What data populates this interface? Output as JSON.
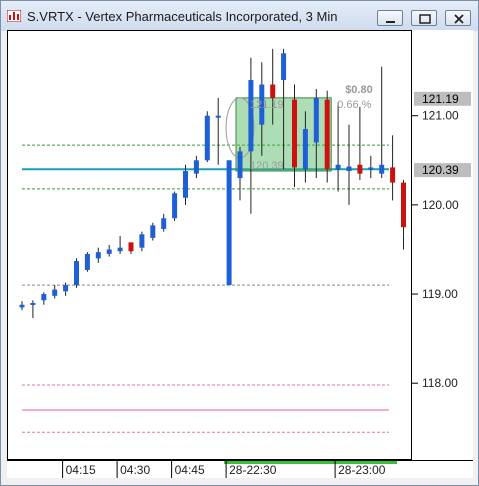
{
  "window": {
    "title": "S.VRTX - Vertex Pharmaceuticals Incorporated, 3 Min",
    "colors": {
      "titlebar": "#cfdcee",
      "up": "#1f5fd6",
      "down": "#cc1111"
    }
  },
  "chart_data": {
    "type": "candlestick",
    "symbol": "S.VRTX",
    "ylim": [
      117.15,
      121.95
    ],
    "y_ticks": [
      "121.00",
      "120.00",
      "119.00",
      "118.00"
    ],
    "y_tick_values": [
      121.0,
      120.0,
      119.0,
      118.0
    ],
    "x_ticks": [
      "04:15",
      "04:30",
      "04:45",
      "28-22:30",
      "28-23:00"
    ],
    "x_tick_index": [
      4,
      9,
      14,
      19,
      29
    ],
    "price_tags": [
      {
        "label": "121.19",
        "value": 121.19
      },
      {
        "label": "120.39",
        "value": 120.39
      }
    ],
    "candles": [
      {
        "o": 118.85,
        "h": 118.92,
        "l": 118.82,
        "c": 118.88
      },
      {
        "o": 118.9,
        "h": 118.93,
        "l": 118.73,
        "c": 118.9
      },
      {
        "o": 118.93,
        "h": 119.02,
        "l": 118.88,
        "c": 119.0
      },
      {
        "o": 118.98,
        "h": 119.1,
        "l": 118.95,
        "c": 119.05
      },
      {
        "o": 119.03,
        "h": 119.13,
        "l": 118.98,
        "c": 119.1
      },
      {
        "o": 119.1,
        "h": 119.4,
        "l": 119.07,
        "c": 119.37
      },
      {
        "o": 119.27,
        "h": 119.47,
        "l": 119.25,
        "c": 119.45
      },
      {
        "o": 119.4,
        "h": 119.52,
        "l": 119.35,
        "c": 119.47
      },
      {
        "o": 119.45,
        "h": 119.55,
        "l": 119.42,
        "c": 119.5
      },
      {
        "o": 119.48,
        "h": 119.65,
        "l": 119.45,
        "c": 119.52
      },
      {
        "o": 119.58,
        "h": 119.55,
        "l": 119.45,
        "c": 119.48
      },
      {
        "o": 119.52,
        "h": 119.7,
        "l": 119.48,
        "c": 119.67
      },
      {
        "o": 119.63,
        "h": 119.8,
        "l": 119.6,
        "c": 119.77
      },
      {
        "o": 119.73,
        "h": 119.9,
        "l": 119.7,
        "c": 119.85
      },
      {
        "o": 119.85,
        "h": 120.15,
        "l": 119.82,
        "c": 120.13
      },
      {
        "o": 120.08,
        "h": 120.45,
        "l": 120.0,
        "c": 120.38
      },
      {
        "o": 120.35,
        "h": 120.55,
        "l": 120.3,
        "c": 120.5
      },
      {
        "o": 120.5,
        "h": 121.05,
        "l": 120.48,
        "c": 121.0
      },
      {
        "o": 121.0,
        "h": 121.2,
        "l": 120.45,
        "c": 121.0
      },
      {
        "o": 119.1,
        "h": 120.5,
        "l": 119.1,
        "c": 120.5
      },
      {
        "o": 120.3,
        "h": 120.65,
        "l": 120.05,
        "c": 120.6
      },
      {
        "o": 120.6,
        "h": 121.65,
        "l": 119.9,
        "c": 121.4
      },
      {
        "o": 120.9,
        "h": 121.6,
        "l": 120.55,
        "c": 121.35
      },
      {
        "o": 121.35,
        "h": 121.75,
        "l": 120.9,
        "c": 121.2
      },
      {
        "o": 121.4,
        "h": 121.75,
        "l": 120.4,
        "c": 121.7
      },
      {
        "o": 121.18,
        "h": 121.35,
        "l": 120.2,
        "c": 120.42
      },
      {
        "o": 120.4,
        "h": 121.05,
        "l": 120.25,
        "c": 120.85
      },
      {
        "o": 120.7,
        "h": 121.3,
        "l": 120.3,
        "c": 121.2
      },
      {
        "o": 121.18,
        "h": 121.28,
        "l": 120.25,
        "c": 120.4
      },
      {
        "o": 120.4,
        "h": 121.15,
        "l": 120.15,
        "c": 120.45
      },
      {
        "o": 120.38,
        "h": 120.9,
        "l": 120.0,
        "c": 120.43
      },
      {
        "o": 120.45,
        "h": 121.1,
        "l": 120.28,
        "c": 120.35
      },
      {
        "o": 120.4,
        "h": 120.55,
        "l": 120.3,
        "c": 120.42
      },
      {
        "o": 120.35,
        "h": 121.55,
        "l": 120.3,
        "c": 120.45
      },
      {
        "o": 120.42,
        "h": 120.78,
        "l": 120.05,
        "c": 120.25
      },
      {
        "o": 120.25,
        "h": 120.28,
        "l": 119.5,
        "c": 119.75
      }
    ],
    "horizontal_lines": [
      {
        "value": 120.67,
        "color": "#2e9e2e",
        "style": "dash"
      },
      {
        "value": 120.4,
        "color": "#1aa0b8",
        "style": "solid"
      },
      {
        "value": 120.18,
        "color": "#2e9e2e",
        "style": "dash"
      },
      {
        "value": 119.1,
        "color": "#888888",
        "style": "dash"
      },
      {
        "value": 117.98,
        "color": "#e070b0",
        "style": "dash"
      },
      {
        "value": 117.7,
        "color": "#f090c8",
        "style": "solid"
      },
      {
        "value": 117.45,
        "color": "#e070b0",
        "style": "dash"
      }
    ],
    "measure_box": {
      "from_index": 20,
      "to_index": 28,
      "top": 121.2,
      "bottom": 120.38,
      "labels": {
        "change": "$0.80",
        "percent": "0.66 %",
        "top_price": "121.19",
        "bottom_price": "120.39"
      }
    }
  }
}
